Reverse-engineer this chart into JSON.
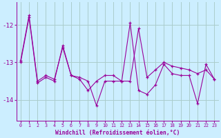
{
  "xlabel": "Windchill (Refroidissement éolien,°C)",
  "background_color": "#cceeff",
  "line_color": "#990099",
  "grid_color": "#aacccc",
  "x_values": [
    0,
    1,
    2,
    3,
    4,
    5,
    6,
    7,
    8,
    9,
    10,
    11,
    12,
    13,
    14,
    15,
    16,
    17,
    18,
    19,
    20,
    21,
    22,
    23
  ],
  "y_jagged": [
    -12.95,
    -11.75,
    -13.5,
    -13.35,
    -13.45,
    -12.6,
    -13.35,
    -13.45,
    -13.75,
    -13.5,
    -13.35,
    -13.35,
    -13.5,
    -13.5,
    -12.1,
    -13.4,
    -13.2,
    -13.0,
    -13.1,
    -13.15,
    -13.2,
    -13.3,
    -13.2,
    -13.45
  ],
  "y_smooth": [
    -13.0,
    -11.8,
    -13.55,
    -13.4,
    -13.5,
    -12.55,
    -13.35,
    -13.4,
    -13.5,
    -14.15,
    -13.5,
    -13.5,
    -13.5,
    -11.95,
    -13.75,
    -13.85,
    -13.6,
    -13.05,
    -13.3,
    -13.35,
    -13.35,
    -14.1,
    -13.05,
    -13.45
  ],
  "ylim": [
    -14.55,
    -11.4
  ],
  "yticks": [
    -14,
    -13,
    -12
  ],
  "xlim": [
    -0.5,
    23.5
  ],
  "xticks": [
    0,
    1,
    2,
    3,
    4,
    5,
    6,
    7,
    8,
    9,
    10,
    11,
    12,
    13,
    14,
    15,
    16,
    17,
    18,
    19,
    20,
    21,
    22,
    23
  ]
}
